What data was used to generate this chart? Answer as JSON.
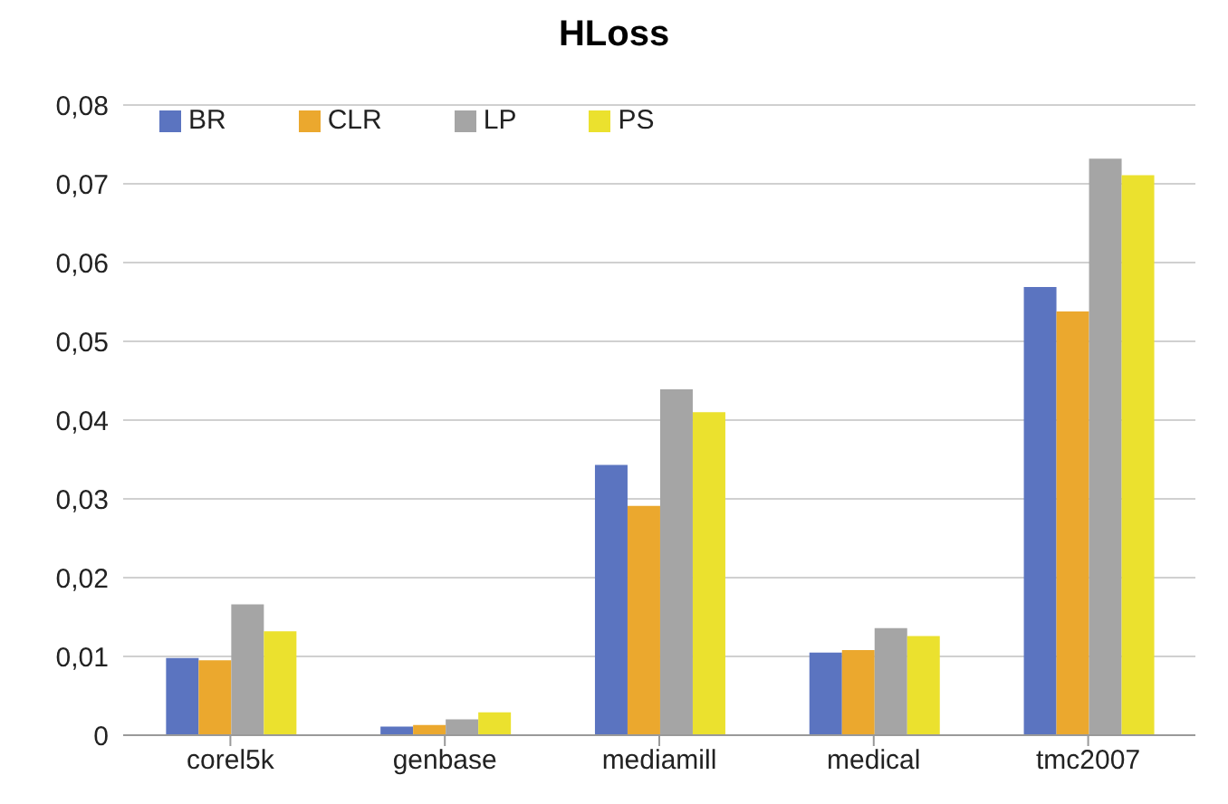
{
  "chart_data": {
    "type": "bar",
    "title": "HLoss",
    "categories": [
      "corel5k",
      "genbase",
      "mediamill",
      "medical",
      "tmc2007"
    ],
    "series": [
      {
        "name": "BR",
        "color": "#5b74c0",
        "values": [
          0.0098,
          0.0011,
          0.0343,
          0.0105,
          0.0569
        ]
      },
      {
        "name": "CLR",
        "color": "#eba82e",
        "values": [
          0.0095,
          0.0013,
          0.0291,
          0.0108,
          0.0538
        ]
      },
      {
        "name": "LP",
        "color": "#a5a5a5",
        "values": [
          0.0166,
          0.002,
          0.0439,
          0.0136,
          0.0732
        ]
      },
      {
        "name": "PS",
        "color": "#ebe12e",
        "values": [
          0.0132,
          0.0029,
          0.041,
          0.0126,
          0.0711
        ]
      }
    ],
    "ylim": [
      0,
      0.08
    ],
    "yticks": [
      0,
      {
        "value": 0.01,
        "label": "0,01"
      },
      {
        "value": 0.02,
        "label": "0,02"
      },
      {
        "value": 0.03,
        "label": "0,03"
      },
      {
        "value": 0.04,
        "label": "0,04"
      },
      {
        "value": 0.05,
        "label": "0,05"
      },
      {
        "value": 0.06,
        "label": "0,06"
      },
      {
        "value": 0.07,
        "label": "0,07"
      },
      {
        "value": 0.08,
        "label": "0,08"
      }
    ],
    "grid": "y",
    "legend": "top left"
  }
}
